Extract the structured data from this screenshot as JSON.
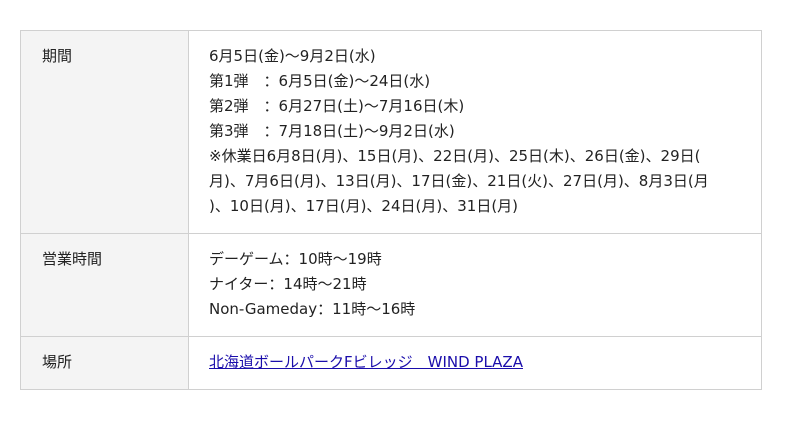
{
  "rows": [
    {
      "label": "期間",
      "lines": [
        "6月5日(金)〜9月2日(水)",
        "第1弾　：6月5日(金)〜24日(水)",
        "第2弾　：6月27日(土)〜7月16日(木)",
        "第3弾　：7月18日(土)〜9月2日(水)",
        "※休業日6月8日(月)、15日(月)、22日(月)、25日(木)、26日(金)、29日(",
        "月)、7月6日(月)、13日(月)、17日(金)、21日(火)、27日(月)、8月3日(月",
        ")、10日(月)、17日(月)、24日(月)、31日(月)"
      ]
    },
    {
      "label": "営業時間",
      "lines": [
        "デーゲーム：10時〜19時",
        "ナイター：14時〜21時",
        "Non-Gameday：11時〜16時"
      ]
    },
    {
      "label": "場所",
      "link": "北海道ボールパークFビレッジ　WIND PLAZA"
    }
  ]
}
